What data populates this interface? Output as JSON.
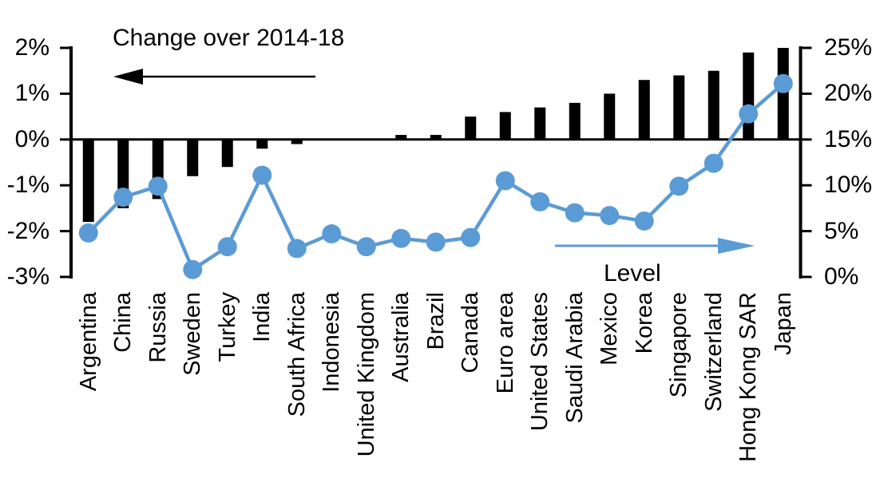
{
  "chart_data": {
    "type": "bar+line (dual axis)",
    "title": "Change over 2014-18",
    "line_label": "Level",
    "categories": [
      "Argentina",
      "China",
      "Russia",
      "Sweden",
      "Turkey",
      "India",
      "South Africa",
      "Indonesia",
      "United Kingdom",
      "Australia",
      "Brazil",
      "Canada",
      "Euro area",
      "United States",
      "Saudi Arabia",
      "Mexico",
      "Korea",
      "Singapore",
      "Switzerland",
      "Hong Kong SAR",
      "Japan"
    ],
    "series": [
      {
        "name": "Change over 2014-18",
        "type": "bar",
        "axis": "left",
        "values": [
          -1.8,
          -1.5,
          -1.3,
          -0.8,
          -0.6,
          -0.2,
          -0.1,
          0,
          0,
          0.1,
          0.1,
          0.5,
          0.6,
          0.7,
          0.8,
          1.0,
          1.3,
          1.4,
          1.5,
          1.9,
          2.0
        ]
      },
      {
        "name": "Level",
        "type": "line",
        "axis": "right",
        "values": [
          4.8,
          8.7,
          9.9,
          0.8,
          3.3,
          11.1,
          3.1,
          4.7,
          3.3,
          4.2,
          3.8,
          4.3,
          10.5,
          8.2,
          7.0,
          6.7,
          6.1,
          9.9,
          12.4,
          17.8,
          21.1
        ]
      }
    ],
    "left_axis": {
      "tick_labels": [
        "2%",
        "1%",
        "0%",
        "-1%",
        "-2%",
        "-3%"
      ],
      "tick_values": [
        2,
        1,
        0,
        -1,
        -2,
        -3
      ],
      "min": -3,
      "max": 2
    },
    "right_axis": {
      "tick_labels": [
        "25%",
        "20%",
        "15%",
        "10%",
        "5%",
        "0%"
      ],
      "tick_values": [
        25,
        20,
        15,
        10,
        5,
        0
      ],
      "min": 0,
      "max": 25
    },
    "legend": {
      "left_arrow_points_to": "left axis",
      "right_arrow_points_to": "right axis"
    },
    "grid": "off",
    "colors": {
      "bar": "#000000",
      "line": "#5B9BD5",
      "axis": "#000000",
      "background": "#ffffff"
    }
  }
}
